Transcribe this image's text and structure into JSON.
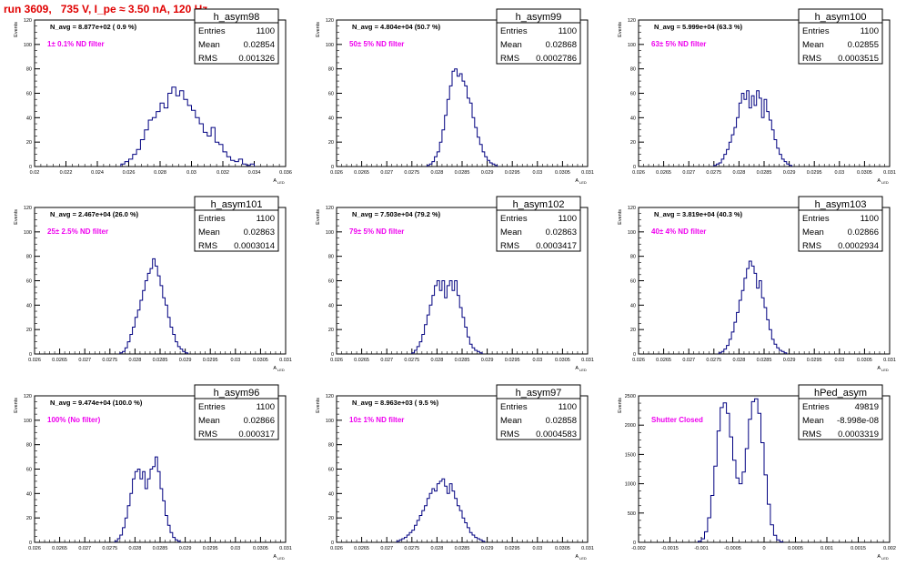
{
  "run_title": "run 3609,   735 V, I_pe ≈ 3.50 nA, 120 Hz",
  "colors": {
    "hist": "#000080",
    "annotation": "#ee00ee",
    "title": "#e00000",
    "axis": "#000000"
  },
  "stats_labels": {
    "entries": "Entries",
    "mean": "Mean",
    "rms": "RMS"
  },
  "xlabel": "A",
  "xlabel_sub": "LED",
  "ylabel": "Events",
  "chart_data": [
    {
      "type": "bar",
      "name": "h_asym98",
      "entries": "1100",
      "mean": "0.02854",
      "rms": "0.001326",
      "n_avg": "N_avg = 8.877e+02 ( 0.9 %)",
      "filter": "1± 0.1% ND filter",
      "xlim": [
        0.02,
        0.036
      ],
      "ylim": [
        0,
        120
      ],
      "xticks": [
        0.02,
        0.022,
        0.024,
        0.026,
        0.028,
        0.03,
        0.032,
        0.034,
        0.036
      ],
      "xtick_labels": [
        "0.02",
        "0.022",
        "0.024",
        "0.026",
        "0.028",
        "0.03",
        "0.032",
        "0.034",
        "0.036"
      ],
      "yticks": [
        0,
        20,
        40,
        60,
        80,
        100,
        120
      ],
      "bin_start": 0.0255,
      "bin_width": 0.00025,
      "counts": [
        2,
        4,
        6,
        10,
        14,
        22,
        30,
        38,
        40,
        45,
        52,
        48,
        60,
        65,
        58,
        62,
        55,
        50,
        46,
        40,
        35,
        28,
        25,
        32,
        20,
        18,
        12,
        8,
        5,
        4,
        6,
        2,
        1,
        2
      ]
    },
    {
      "type": "bar",
      "name": "h_asym99",
      "entries": "1100",
      "mean": "0.02868",
      "rms": "0.0002786",
      "n_avg": "N_avg = 4.804e+04 (50.7 %)",
      "filter": "50± 5% ND filter",
      "xlim": [
        0.026,
        0.031
      ],
      "ylim": [
        0,
        120
      ],
      "xticks": [
        0.026,
        0.0265,
        0.027,
        0.0275,
        0.028,
        0.0285,
        0.029,
        0.0295,
        0.03,
        0.0305,
        0.031
      ],
      "xtick_labels": [
        "0.026",
        "0.0265",
        "0.027",
        "0.0275",
        "0.028",
        "0.0285",
        "0.029",
        "0.0295",
        "0.03",
        "0.0305",
        "0.031"
      ],
      "yticks": [
        0,
        20,
        40,
        60,
        80,
        100,
        120
      ],
      "bin_start": 0.0278,
      "bin_width": 5e-05,
      "counts": [
        1,
        2,
        4,
        8,
        12,
        20,
        30,
        42,
        55,
        66,
        78,
        80,
        74,
        76,
        70,
        66,
        56,
        52,
        40,
        32,
        24,
        18,
        12,
        8,
        5,
        3,
        2,
        1
      ]
    },
    {
      "type": "bar",
      "name": "h_asym100",
      "entries": "1100",
      "mean": "0.02855",
      "rms": "0.0003515",
      "n_avg": "N_avg = 5.999e+04 (63.3 %)",
      "filter": "63± 5% ND filter",
      "xlim": [
        0.026,
        0.031
      ],
      "ylim": [
        0,
        120
      ],
      "xticks": [
        0.026,
        0.0265,
        0.027,
        0.0275,
        0.028,
        0.0285,
        0.029,
        0.0295,
        0.03,
        0.0305,
        0.031
      ],
      "xtick_labels": [
        "0.026",
        "0.0265",
        "0.027",
        "0.0275",
        "0.028",
        "0.0285",
        "0.029",
        "0.0295",
        "0.03",
        "0.0305",
        "0.031"
      ],
      "yticks": [
        0,
        20,
        40,
        60,
        80,
        100,
        120
      ],
      "bin_start": 0.0275,
      "bin_width": 5e-05,
      "counts": [
        1,
        2,
        3,
        6,
        10,
        14,
        20,
        26,
        32,
        40,
        52,
        60,
        55,
        62,
        48,
        58,
        50,
        62,
        56,
        40,
        55,
        45,
        38,
        30,
        22,
        15,
        10,
        6,
        4,
        2,
        1
      ]
    },
    {
      "type": "bar",
      "name": "h_asym101",
      "entries": "1100",
      "mean": "0.02863",
      "rms": "0.0003014",
      "n_avg": "N_avg = 2.467e+04 (26.0 %)",
      "filter": "25± 2.5% ND filter",
      "xlim": [
        0.026,
        0.031
      ],
      "ylim": [
        0,
        120
      ],
      "xticks": [
        0.026,
        0.0265,
        0.027,
        0.0275,
        0.028,
        0.0285,
        0.029,
        0.0295,
        0.03,
        0.0305,
        0.031
      ],
      "xtick_labels": [
        "0.026",
        "0.0265",
        "0.027",
        "0.0275",
        "0.028",
        "0.0285",
        "0.029",
        "0.0295",
        "0.03",
        "0.0305",
        "0.031"
      ],
      "yticks": [
        0,
        20,
        40,
        60,
        80,
        100,
        120
      ],
      "bin_start": 0.0277,
      "bin_width": 5e-05,
      "counts": [
        1,
        2,
        5,
        10,
        16,
        22,
        30,
        36,
        44,
        52,
        60,
        66,
        70,
        78,
        72,
        64,
        56,
        46,
        40,
        30,
        22,
        16,
        10,
        6,
        4,
        2,
        1
      ]
    },
    {
      "type": "bar",
      "name": "h_asym102",
      "entries": "1100",
      "mean": "0.02863",
      "rms": "0.0003417",
      "n_avg": "N_avg = 7.503e+04 (79.2 %)",
      "filter": "79± 5% ND filter",
      "xlim": [
        0.026,
        0.031
      ],
      "ylim": [
        0,
        120
      ],
      "xticks": [
        0.026,
        0.0265,
        0.027,
        0.0275,
        0.028,
        0.0285,
        0.029,
        0.0295,
        0.03,
        0.0305,
        0.031
      ],
      "xtick_labels": [
        "0.026",
        "0.0265",
        "0.027",
        "0.0275",
        "0.028",
        "0.0285",
        "0.029",
        "0.0295",
        "0.03",
        "0.0305",
        "0.031"
      ],
      "yticks": [
        0,
        20,
        40,
        60,
        80,
        100,
        120
      ],
      "bin_start": 0.0275,
      "bin_width": 5e-05,
      "counts": [
        1,
        3,
        6,
        10,
        16,
        24,
        32,
        40,
        48,
        56,
        60,
        52,
        60,
        46,
        56,
        60,
        52,
        60,
        48,
        38,
        30,
        22,
        14,
        8,
        5,
        3,
        2,
        1
      ]
    },
    {
      "type": "bar",
      "name": "h_asym103",
      "entries": "1100",
      "mean": "0.02866",
      "rms": "0.0002934",
      "n_avg": "N_avg = 3.819e+04 (40.3 %)",
      "filter": "40± 4% ND filter",
      "xlim": [
        0.026,
        0.031
      ],
      "ylim": [
        0,
        120
      ],
      "xticks": [
        0.026,
        0.0265,
        0.027,
        0.0275,
        0.028,
        0.0285,
        0.029,
        0.0295,
        0.03,
        0.0305,
        0.031
      ],
      "xtick_labels": [
        "0.026",
        "0.0265",
        "0.027",
        "0.0275",
        "0.028",
        "0.0285",
        "0.029",
        "0.0295",
        "0.03",
        "0.0305",
        "0.031"
      ],
      "yticks": [
        0,
        20,
        40,
        60,
        80,
        100,
        120
      ],
      "bin_start": 0.0276,
      "bin_width": 5e-05,
      "counts": [
        1,
        2,
        4,
        7,
        12,
        18,
        26,
        34,
        44,
        52,
        62,
        70,
        76,
        72,
        66,
        54,
        60,
        46,
        38,
        28,
        20,
        12,
        8,
        5,
        3,
        2,
        1
      ]
    },
    {
      "type": "bar",
      "name": "h_asym96",
      "entries": "1100",
      "mean": "0.02866",
      "rms": "0.000317",
      "n_avg": "N_avg = 9.474e+04 (100.0 %)",
      "filter": "100% (No filter)",
      "xlim": [
        0.026,
        0.031
      ],
      "ylim": [
        0,
        120
      ],
      "xticks": [
        0.026,
        0.0265,
        0.027,
        0.0275,
        0.028,
        0.0285,
        0.029,
        0.0295,
        0.03,
        0.0305,
        0.031
      ],
      "xtick_labels": [
        "0.026",
        "0.0265",
        "0.027",
        "0.0275",
        "0.028",
        "0.0285",
        "0.029",
        "0.0295",
        "0.03",
        "0.0305",
        "0.031"
      ],
      "yticks": [
        0,
        20,
        40,
        60,
        80,
        100,
        120
      ],
      "bin_start": 0.0276,
      "bin_width": 5e-05,
      "counts": [
        1,
        3,
        6,
        12,
        20,
        30,
        40,
        52,
        58,
        60,
        52,
        58,
        44,
        52,
        60,
        62,
        70,
        58,
        44,
        34,
        22,
        14,
        8,
        4,
        2,
        1
      ]
    },
    {
      "type": "bar",
      "name": "h_asym97",
      "entries": "1100",
      "mean": "0.02858",
      "rms": "0.0004583",
      "n_avg": "N_avg = 8.963e+03 ( 9.5 %)",
      "filter": "10± 1% ND filter",
      "xlim": [
        0.026,
        0.031
      ],
      "ylim": [
        0,
        120
      ],
      "xticks": [
        0.026,
        0.0265,
        0.027,
        0.0275,
        0.028,
        0.0285,
        0.029,
        0.0295,
        0.03,
        0.0305,
        0.031
      ],
      "xtick_labels": [
        "0.026",
        "0.0265",
        "0.027",
        "0.0275",
        "0.028",
        "0.0285",
        "0.029",
        "0.0295",
        "0.03",
        "0.0305",
        "0.031"
      ],
      "yticks": [
        0,
        20,
        40,
        60,
        80,
        100,
        120
      ],
      "bin_start": 0.0272,
      "bin_width": 5e-05,
      "counts": [
        1,
        2,
        3,
        4,
        6,
        8,
        10,
        14,
        18,
        22,
        26,
        30,
        36,
        40,
        44,
        42,
        48,
        50,
        52,
        46,
        40,
        48,
        42,
        36,
        30,
        26,
        20,
        16,
        12,
        8,
        6,
        4,
        3,
        2,
        1
      ]
    },
    {
      "type": "bar",
      "name": "hPed_asym",
      "entries": "49819",
      "mean": "-8.998e-08",
      "rms": "0.0003319",
      "n_avg": "",
      "filter": "Shutter Closed",
      "xlim": [
        -0.002,
        0.002
      ],
      "ylim": [
        0,
        2500
      ],
      "xticks": [
        -0.002,
        -0.0015,
        -0.001,
        -0.0005,
        0,
        0.0005,
        0.001,
        0.0015,
        0.002
      ],
      "xtick_labels": [
        "-0.002",
        "-0.0015",
        "-0.001",
        "-0.0005",
        "0",
        "0.0005",
        "0.001",
        "0.0015",
        "0.002"
      ],
      "yticks": [
        0,
        500,
        1000,
        1500,
        2000,
        2500
      ],
      "bin_start": -0.00105,
      "bin_width": 5e-05,
      "counts": [
        20,
        60,
        180,
        420,
        800,
        1300,
        1900,
        2300,
        2380,
        2200,
        1800,
        1400,
        1100,
        1000,
        1200,
        1600,
        2100,
        2400,
        2450,
        2200,
        1700,
        1150,
        650,
        300,
        120,
        40,
        10
      ]
    }
  ]
}
